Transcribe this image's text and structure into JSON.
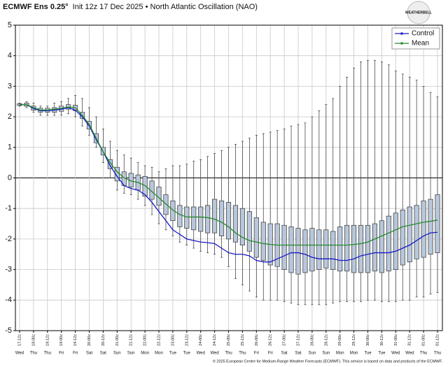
{
  "chart_data": {
    "type": "boxplot",
    "title": "ECMWF Ens 0.25°",
    "subtitle": "Init 12z 17 Dec 2025 • North Atlantic Oscillation (NAO)",
    "logo_text": "WEATHERBELL",
    "footer": "© 2025 European Centre for Medium-Range Weather Forecasts (ECMWF). This service is based on data and products of the ECMWF.",
    "categories": [
      "17-12z",
      null,
      "18-00z",
      null,
      "18-12z",
      null,
      "19-00z",
      null,
      "19-12z",
      null,
      "20-00z",
      null,
      "20-12z",
      null,
      "21-00z",
      null,
      "21-12z",
      null,
      "22-00z",
      null,
      "22-12z",
      null,
      "23-00z",
      null,
      "23-12z",
      null,
      "24-00z",
      null,
      "24-12z",
      null,
      "25-00z",
      null,
      "25-12z",
      null,
      "26-00z",
      null,
      "26-12z",
      null,
      "27-00z",
      null,
      "27-12z",
      null,
      "28-00z",
      null,
      "28-12z",
      null,
      "29-00z",
      null,
      "29-12z",
      null,
      "30-00z",
      null,
      "30-12z",
      null,
      "31-00z",
      null,
      "31-12z",
      null,
      "01-00z",
      null,
      "01-12z"
    ],
    "day_labels": [
      "Wed",
      null,
      "Thu",
      null,
      "Thu",
      null,
      "Fri",
      null,
      "Fri",
      null,
      "Sat",
      null,
      "Sat",
      null,
      "Sun",
      null,
      "Sun",
      null,
      "Mon",
      null,
      "Mon",
      null,
      "Tue",
      null,
      "Tue",
      null,
      "Wed",
      null,
      "Wed",
      null,
      "Thu",
      null,
      "Thu",
      null,
      "Fri",
      null,
      "Fri",
      null,
      "Sat",
      null,
      "Sat",
      null,
      "Sun",
      null,
      "Sun",
      null,
      "Mon",
      null,
      "Mon",
      null,
      "Tue",
      null,
      "Tue",
      null,
      "Wed",
      null,
      "Wed",
      null,
      "Thu",
      null,
      "Thu"
    ],
    "boxes": {
      "color": "#b8c7da",
      "min": [
        2.35,
        2.3,
        2.15,
        2.05,
        2.05,
        2.05,
        2.05,
        2.1,
        2.0,
        1.7,
        1.4,
        1.0,
        0.5,
        0.0,
        -0.4,
        -0.5,
        -0.55,
        -0.7,
        -0.9,
        -1.2,
        -1.5,
        -1.7,
        -1.9,
        -2.1,
        -2.2,
        -2.3,
        -2.4,
        -2.45,
        -2.5,
        -2.6,
        -2.9,
        -3.3,
        -3.5,
        -3.7,
        -3.9,
        -4.0,
        -4.0,
        -4.0,
        -4.05,
        -4.1,
        -4.15,
        -4.15,
        -4.15,
        -4.15,
        -4.15,
        -4.1,
        -4.05,
        -4.05,
        -4.05,
        -4.05,
        -4.0,
        -4.0,
        -4.05,
        -4.05,
        -4.05,
        -4.0,
        -4.0,
        -3.9,
        -3.9,
        -3.8,
        -3.75
      ],
      "q1": [
        2.37,
        2.35,
        2.22,
        2.15,
        2.15,
        2.15,
        2.18,
        2.25,
        2.2,
        1.95,
        1.6,
        1.15,
        0.75,
        0.3,
        -0.1,
        -0.25,
        -0.3,
        -0.4,
        -0.6,
        -0.7,
        -0.9,
        -1.2,
        -1.4,
        -1.6,
        -1.65,
        -1.7,
        -1.75,
        -1.8,
        -1.8,
        -1.9,
        -2.0,
        -2.1,
        -2.2,
        -2.4,
        -2.6,
        -2.7,
        -2.85,
        -2.9,
        -3.0,
        -3.1,
        -3.15,
        -3.1,
        -3.05,
        -3.0,
        -2.95,
        -3.0,
        -3.05,
        -3.05,
        -3.1,
        -3.1,
        -3.1,
        -3.05,
        -3.1,
        -3.05,
        -3.0,
        -2.85,
        -2.75,
        -2.65,
        -2.6,
        -2.5,
        -2.45
      ],
      "q3": [
        2.43,
        2.45,
        2.35,
        2.28,
        2.28,
        2.3,
        2.35,
        2.4,
        2.38,
        2.15,
        1.85,
        1.45,
        1.0,
        0.6,
        0.35,
        0.2,
        0.15,
        0.1,
        0.05,
        -0.1,
        -0.3,
        -0.55,
        -0.75,
        -0.9,
        -0.95,
        -0.95,
        -0.95,
        -0.9,
        -0.7,
        -0.75,
        -0.8,
        -0.9,
        -1.0,
        -1.1,
        -1.3,
        -1.45,
        -1.5,
        -1.5,
        -1.55,
        -1.6,
        -1.65,
        -1.7,
        -1.65,
        -1.7,
        -1.7,
        -1.75,
        -1.6,
        -1.55,
        -1.55,
        -1.55,
        -1.55,
        -1.5,
        -1.4,
        -1.25,
        -1.15,
        -1.05,
        -0.95,
        -0.9,
        -0.75,
        -0.7,
        -0.55
      ],
      "max": [
        2.45,
        2.5,
        2.45,
        2.35,
        2.35,
        2.45,
        2.5,
        2.6,
        2.7,
        2.6,
        2.3,
        2.0,
        1.6,
        1.2,
        0.9,
        0.75,
        0.65,
        0.5,
        0.4,
        0.35,
        0.2,
        0.3,
        0.4,
        0.4,
        0.45,
        0.55,
        0.6,
        0.7,
        0.8,
        0.9,
        1.0,
        1.1,
        1.2,
        1.3,
        1.4,
        1.45,
        1.5,
        1.55,
        1.6,
        1.7,
        1.75,
        1.8,
        2.0,
        2.2,
        2.4,
        2.6,
        3.0,
        3.3,
        3.6,
        3.8,
        3.85,
        3.85,
        3.8,
        3.7,
        3.5,
        3.4,
        3.3,
        3.2,
        3.0,
        2.8,
        2.65
      ]
    },
    "series": [
      {
        "name": "Control",
        "color": "#1a1ac8",
        "values": [
          2.4,
          2.4,
          2.27,
          2.2,
          2.2,
          2.22,
          2.25,
          2.3,
          2.22,
          2.0,
          1.7,
          1.25,
          0.85,
          0.4,
          0.05,
          -0.25,
          -0.35,
          -0.4,
          -0.55,
          -0.8,
          -1.1,
          -1.4,
          -1.7,
          -1.85,
          -2.0,
          -2.05,
          -2.1,
          -2.12,
          -2.15,
          -2.3,
          -2.45,
          -2.5,
          -2.5,
          -2.55,
          -2.7,
          -2.75,
          -2.75,
          -2.65,
          -2.55,
          -2.45,
          -2.45,
          -2.5,
          -2.6,
          -2.65,
          -2.65,
          -2.65,
          -2.7,
          -2.7,
          -2.65,
          -2.55,
          -2.5,
          -2.45,
          -2.45,
          -2.45,
          -2.4,
          -2.3,
          -2.2,
          -2.05,
          -1.9,
          -1.8,
          -1.78
        ]
      },
      {
        "name": "Mean",
        "color": "#238a2a",
        "values": [
          2.4,
          2.4,
          2.3,
          2.22,
          2.22,
          2.25,
          2.28,
          2.32,
          2.3,
          2.05,
          1.75,
          1.3,
          0.85,
          0.5,
          0.2,
          0.0,
          -0.1,
          -0.15,
          -0.25,
          -0.45,
          -0.65,
          -0.85,
          -1.05,
          -1.2,
          -1.28,
          -1.28,
          -1.28,
          -1.3,
          -1.35,
          -1.45,
          -1.6,
          -1.8,
          -1.95,
          -2.05,
          -2.1,
          -2.15,
          -2.18,
          -2.2,
          -2.2,
          -2.2,
          -2.2,
          -2.2,
          -2.2,
          -2.2,
          -2.2,
          -2.2,
          -2.2,
          -2.2,
          -2.18,
          -2.15,
          -2.1,
          -2.0,
          -1.9,
          -1.8,
          -1.7,
          -1.6,
          -1.55,
          -1.5,
          -1.45,
          -1.42,
          -1.38
        ]
      }
    ],
    "ylim": [
      -5,
      5
    ],
    "yticks": [
      -5,
      -4,
      -3,
      -2,
      -1,
      0,
      1,
      2,
      3,
      4,
      5
    ],
    "grid": true,
    "legend": "upper right"
  }
}
